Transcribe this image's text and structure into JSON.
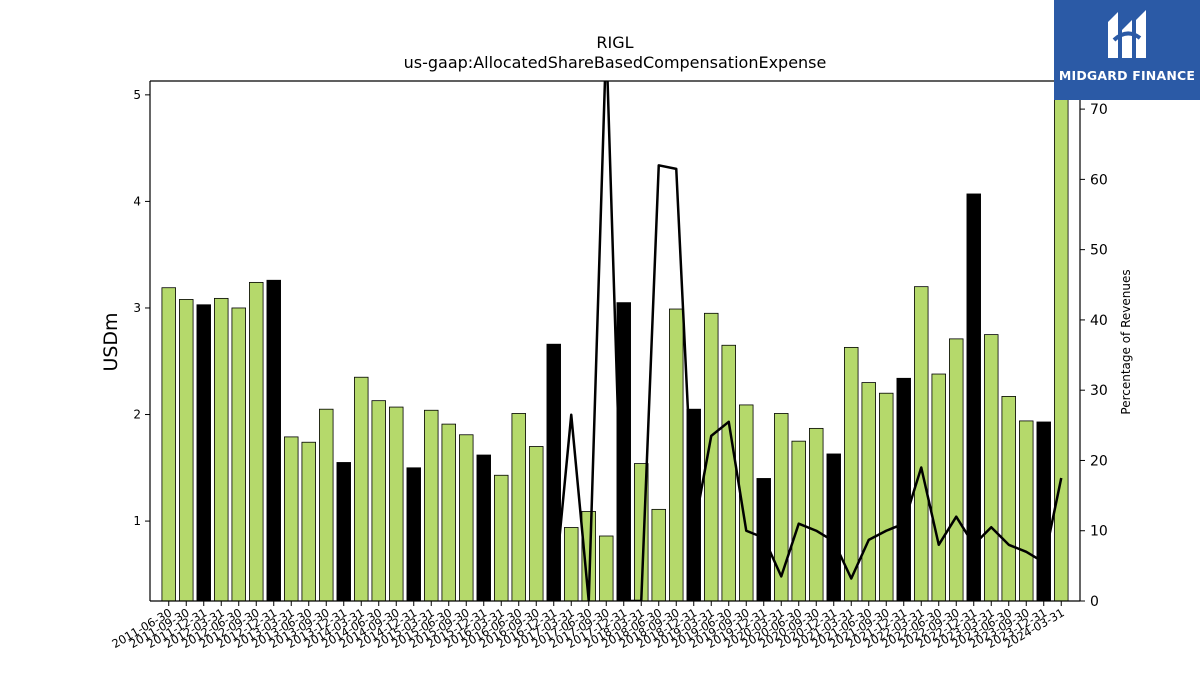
{
  "chart_data": {
    "type": "bar",
    "title": "RIGL",
    "subtitle": "us-gaap:AllocatedShareBasedCompensationExpense",
    "ylabel": "USDm",
    "y2label": "Percentage of Revenues",
    "ylim": [
      0.25,
      5.13
    ],
    "y2lim": [
      0,
      74
    ],
    "yticks": [
      1,
      2,
      3,
      4,
      5
    ],
    "y2ticks": [
      0,
      10,
      20,
      30,
      40,
      50,
      60,
      70
    ],
    "grid": false,
    "colors": {
      "quarter": "#b5d96b",
      "annual": "#000000",
      "line": "#000000"
    },
    "categories": [
      "2011-06-30",
      "2011-09-30",
      "2011-12-31",
      "2012-03-31",
      "2012-06-30",
      "2012-09-30",
      "2012-12-31",
      "2013-03-31",
      "2013-06-30",
      "2013-09-30",
      "2013-12-31",
      "2014-03-31",
      "2014-06-30",
      "2014-09-30",
      "2014-12-31",
      "2015-03-31",
      "2015-06-30",
      "2015-09-30",
      "2015-12-31",
      "2016-03-31",
      "2016-06-30",
      "2016-09-30",
      "2016-12-31",
      "2017-03-31",
      "2017-06-30",
      "2017-09-30",
      "2017-12-31",
      "2018-03-31",
      "2018-06-30",
      "2018-09-30",
      "2018-12-31",
      "2019-03-31",
      "2019-06-30",
      "2019-09-30",
      "2019-12-31",
      "2020-03-31",
      "2020-06-30",
      "2020-09-30",
      "2020-12-31",
      "2021-03-31",
      "2021-06-30",
      "2021-09-30",
      "2021-12-31",
      "2022-03-31",
      "2022-06-30",
      "2022-09-30",
      "2022-12-31",
      "2023-03-31",
      "2023-06-30",
      "2023-09-30",
      "2023-12-31",
      "2024-03-31"
    ],
    "tick_labels": [
      "2011-06-30",
      "2011-09-30",
      "2011-12-31",
      "2012-03-31",
      "2012-06-30",
      "2012-09-30",
      "2012-12-31",
      "2013-03-31",
      "2013-06-30",
      "2013-09-30",
      "2013-12-31",
      "2014-03-31",
      "2014-06-30",
      "2014-09-30",
      "2014-12-31",
      "2015-03-31",
      "2015-06-30",
      "2015-09-30",
      "2015-12-31",
      "2016-03-31",
      "2016-06-30",
      "2016-09-30",
      "2016-12-31",
      "2017-03-31",
      "2017-06-30",
      "2017-09-30",
      "2017-12-31",
      "2018-03-31",
      "2018-06-30",
      "2018-09-30",
      "2018-12-31",
      "2019-03-31",
      "2019-06-30",
      "2019-09-30",
      "2019-12-31",
      "2020-03-31",
      "2020-06-30",
      "2020-09-30",
      "2020-12-31",
      "2021-03-31",
      "2021-06-30",
      "2021-09-30",
      "2021-12-31",
      "2022-03-31",
      "2022-06-30",
      "2022-09-30",
      "2022-12-31",
      "2023-03-31",
      "2023-06-30",
      "2023-09-30",
      "2023-12-31",
      "2024-03-31"
    ],
    "values": [
      3.19,
      3.08,
      3.03,
      3.09,
      3.0,
      3.24,
      3.26,
      1.79,
      1.74,
      2.05,
      1.55,
      2.35,
      2.13,
      2.07,
      1.5,
      2.04,
      1.91,
      1.81,
      1.62,
      1.43,
      2.01,
      1.7,
      2.66,
      0.94,
      1.09,
      0.86,
      3.05,
      1.54,
      1.11,
      2.99,
      2.05,
      2.95,
      2.65,
      2.09,
      1.4,
      2.01,
      1.75,
      1.87,
      1.63,
      2.63,
      2.3,
      2.2,
      2.34,
      3.2,
      2.38,
      2.71,
      4.07,
      2.75,
      2.17,
      1.94,
      1.93,
      5.2
    ],
    "annual": [
      false,
      false,
      true,
      false,
      false,
      false,
      true,
      false,
      false,
      false,
      true,
      false,
      false,
      false,
      true,
      false,
      false,
      false,
      true,
      false,
      false,
      false,
      true,
      false,
      false,
      false,
      true,
      false,
      false,
      false,
      true,
      false,
      false,
      false,
      true,
      false,
      false,
      false,
      true,
      false,
      false,
      false,
      true,
      false,
      false,
      false,
      true,
      false,
      false,
      false,
      true,
      false
    ],
    "pct_revenue": [
      null,
      null,
      null,
      null,
      null,
      null,
      null,
      null,
      null,
      null,
      null,
      null,
      null,
      null,
      null,
      null,
      null,
      null,
      null,
      null,
      null,
      null,
      0.5,
      26.5,
      0,
      80,
      0,
      0,
      62,
      61.5,
      10,
      23.5,
      25.5,
      10,
      9,
      3.5,
      11,
      10,
      8.5,
      3.2,
      8.7,
      10,
      11,
      19,
      8,
      12,
      8,
      10.5,
      8,
      7,
      5.5,
      17.5
    ]
  },
  "logo": {
    "text": "MIDGARD FINANCE",
    "colors": {
      "bg": "#2b5aa6",
      "fg": "#ffffff"
    }
  }
}
